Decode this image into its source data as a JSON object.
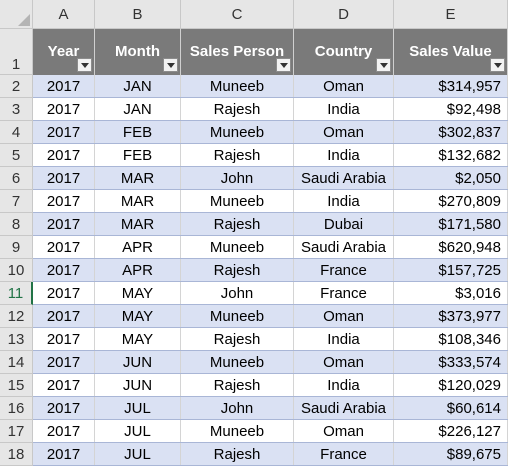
{
  "columns": [
    "A",
    "B",
    "C",
    "D",
    "E"
  ],
  "headers": [
    "Year",
    "Month",
    "Sales Person",
    "Country",
    "Sales Value"
  ],
  "row_numbers": [
    "1",
    "2",
    "3",
    "4",
    "5",
    "6",
    "7",
    "8",
    "9",
    "10",
    "11",
    "12",
    "13",
    "14",
    "15",
    "16",
    "17",
    "18"
  ],
  "active_row": "11",
  "rows": [
    {
      "year": "2017",
      "month": "JAN",
      "person": "Muneeb",
      "country": "Oman",
      "value": "$314,957"
    },
    {
      "year": "2017",
      "month": "JAN",
      "person": "Rajesh",
      "country": "India",
      "value": "$92,498"
    },
    {
      "year": "2017",
      "month": "FEB",
      "person": "Muneeb",
      "country": "Oman",
      "value": "$302,837"
    },
    {
      "year": "2017",
      "month": "FEB",
      "person": "Rajesh",
      "country": "India",
      "value": "$132,682"
    },
    {
      "year": "2017",
      "month": "MAR",
      "person": "John",
      "country": "Saudi Arabia",
      "value": "$2,050"
    },
    {
      "year": "2017",
      "month": "MAR",
      "person": "Muneeb",
      "country": "India",
      "value": "$270,809"
    },
    {
      "year": "2017",
      "month": "MAR",
      "person": "Rajesh",
      "country": "Dubai",
      "value": "$171,580"
    },
    {
      "year": "2017",
      "month": "APR",
      "person": "Muneeb",
      "country": "Saudi Arabia",
      "value": "$620,948"
    },
    {
      "year": "2017",
      "month": "APR",
      "person": "Rajesh",
      "country": "France",
      "value": "$157,725"
    },
    {
      "year": "2017",
      "month": "MAY",
      "person": "John",
      "country": "France",
      "value": "$3,016"
    },
    {
      "year": "2017",
      "month": "MAY",
      "person": "Muneeb",
      "country": "Oman",
      "value": "$373,977"
    },
    {
      "year": "2017",
      "month": "MAY",
      "person": "Rajesh",
      "country": "India",
      "value": "$108,346"
    },
    {
      "year": "2017",
      "month": "JUN",
      "person": "Muneeb",
      "country": "Oman",
      "value": "$333,574"
    },
    {
      "year": "2017",
      "month": "JUN",
      "person": "Rajesh",
      "country": "India",
      "value": "$120,029"
    },
    {
      "year": "2017",
      "month": "JUL",
      "person": "John",
      "country": "Saudi Arabia",
      "value": "$60,614"
    },
    {
      "year": "2017",
      "month": "JUL",
      "person": "Muneeb",
      "country": "Oman",
      "value": "$226,127"
    },
    {
      "year": "2017",
      "month": "JUL",
      "person": "Rajesh",
      "country": "France",
      "value": "$89,675"
    }
  ],
  "colors": {
    "header_bg": "#7a7a7a",
    "band": "#dae1f3",
    "selection": "#217346"
  }
}
